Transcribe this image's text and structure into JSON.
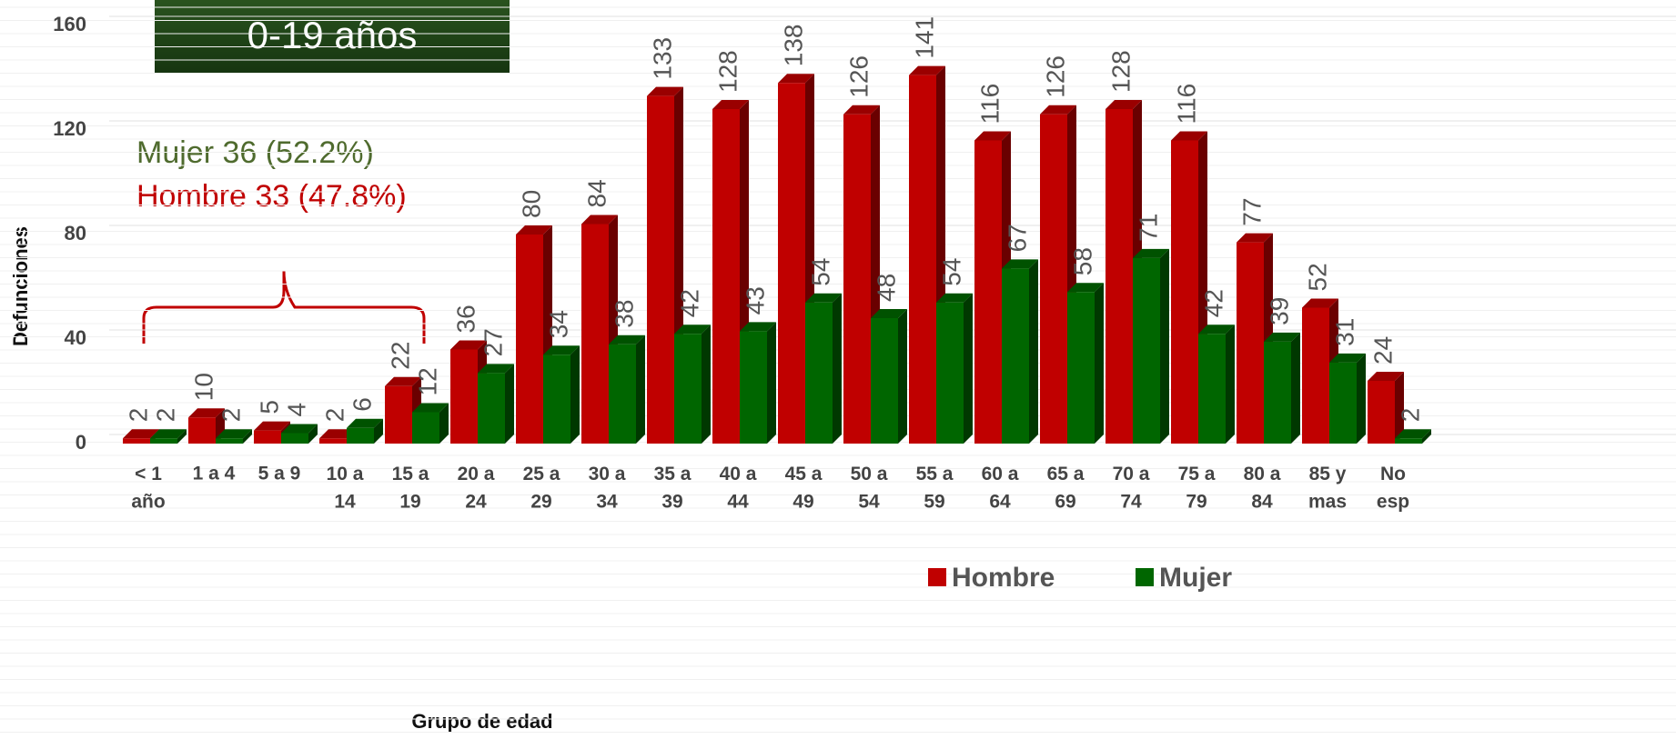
{
  "chart_data": {
    "type": "bar3d",
    "title": "0-19 años",
    "x_label": "Grupo de edad",
    "y_label": "Defunciones",
    "annotations": [
      "Mujer 36 (52.2%)",
      "Hombre 33 (47.8%)"
    ],
    "categories": [
      "< 1\naño",
      "1 a 4",
      "5 a 9",
      "10 a\n14",
      "15 a\n19",
      "20 a\n24",
      "25 a\n29",
      "30 a\n34",
      "35 a\n39",
      "40 a\n44",
      "45 a\n49",
      "50 a\n54",
      "55 a\n59",
      "60 a\n64",
      "65 a\n69",
      "70 a\n74",
      "75 a\n79",
      "80 a\n84",
      "85 y\nmas",
      "No\nesp"
    ],
    "series": [
      {
        "name": "Hombre",
        "color": "#c00000",
        "values": [
          2,
          10,
          5,
          2,
          22,
          36,
          80,
          84,
          133,
          128,
          138,
          126,
          141,
          116,
          126,
          128,
          116,
          77,
          52,
          24
        ]
      },
      {
        "name": "Mujer",
        "color": "#006600",
        "values": [
          2,
          2,
          4,
          6,
          12,
          27,
          34,
          38,
          42,
          43,
          54,
          48,
          54,
          67,
          58,
          71,
          42,
          39,
          31,
          2
        ]
      }
    ],
    "ylim": [
      0,
      160
    ],
    "yticks": [
      0,
      40,
      80,
      120,
      160
    ],
    "grid": true,
    "legend": "bottom-right"
  }
}
